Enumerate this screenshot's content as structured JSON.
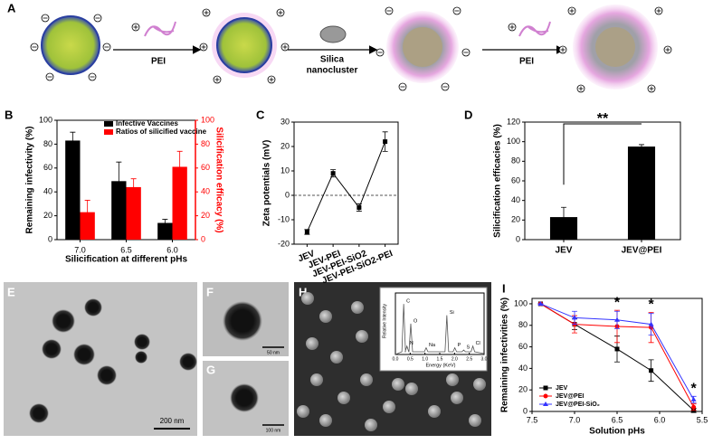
{
  "panels": {
    "scheme": {
      "label": "A",
      "step_1": "PEI",
      "step_2": [
        "Silica",
        "nanocluster"
      ],
      "step_3": "PEI"
    },
    "e": {
      "label": "E",
      "scale_bar": "200 nm"
    },
    "f": {
      "label": "F",
      "scale_bar": "50 nm"
    },
    "g": {
      "label": "G",
      "scale_bar": "100 nm"
    },
    "h": {
      "label": "H",
      "inset": {
        "y_label": "Relative Intensity",
        "x_label": "Energy (KeV)",
        "xticks": [
          {
            "value": 0,
            "label": "0.0"
          },
          {
            "value": 0.5,
            "label": "0.5"
          },
          {
            "value": 1,
            "label": "1.0"
          },
          {
            "value": 1.5,
            "label": "1.5"
          },
          {
            "value": 2,
            "label": "2.0"
          },
          {
            "value": 2.5,
            "label": "2.5"
          },
          {
            "value": 3,
            "label": "3.0"
          }
        ],
        "peaks": [
          "C",
          "N",
          "O",
          "Na",
          "Si",
          "P",
          "S",
          "Cl"
        ]
      }
    }
  },
  "chart_data": [
    {
      "type": "bar",
      "label": "B",
      "categories": [
        "7.0",
        "6.5",
        "6.0"
      ],
      "x_label": "Silicification at different pHs",
      "y_label": "Remaining infectivity (%)",
      "y2_label": "Silicification efficacy (%)",
      "ylim": [
        0,
        100
      ],
      "yticks": [
        0,
        20,
        40,
        60,
        80,
        100
      ],
      "y2lim": [
        0,
        100
      ],
      "y2ticks": [
        0,
        20,
        40,
        60,
        80,
        100
      ],
      "legend": "upper center",
      "series": [
        {
          "name": "Infective Vaccines",
          "color": "#000000",
          "values": [
            83,
            49,
            14
          ],
          "errors": [
            7,
            16,
            3
          ]
        },
        {
          "name": "Ratios of silicified vaccine",
          "color": "#ff0000",
          "axis": "y2",
          "values": [
            23,
            44,
            61
          ],
          "errors": [
            10,
            7,
            13
          ]
        }
      ]
    },
    {
      "type": "line",
      "label": "C",
      "categories": [
        "JEV",
        "JEV-PEI",
        "JEV-PEI-SiO2",
        "JEV-PEI-SiO2-PEI"
      ],
      "y_label": "Zeta potentials (mV)",
      "ylim": [
        -20,
        30
      ],
      "yticks": [
        -20,
        -10,
        0,
        10,
        20,
        30
      ],
      "reference_line": 0,
      "series": [
        {
          "color": "#000000",
          "marker": "square",
          "values": [
            -15,
            9,
            -5,
            22
          ],
          "errors": [
            1,
            1.5,
            1.5,
            4
          ]
        }
      ]
    },
    {
      "type": "bar",
      "label": "D",
      "categories": [
        "JEV",
        "JEV@PEI"
      ],
      "y_label": "Silicification efficacies (%)",
      "ylim": [
        0,
        120
      ],
      "yticks": [
        0,
        20,
        40,
        60,
        80,
        100,
        120
      ],
      "color": "#000000",
      "values": [
        23,
        95
      ],
      "errors": [
        10,
        2
      ],
      "annotation": "**"
    },
    {
      "type": "line",
      "label": "I",
      "x": [
        7.4,
        7.0,
        6.5,
        6.1,
        5.6
      ],
      "x_label": "Solution pHs",
      "y_label": "Remaining infectivities (%)",
      "xlim": [
        7.5,
        5.5
      ],
      "xticks": [
        {
          "value": 7.5,
          "label": "7.5"
        },
        {
          "value": 7,
          "label": "7.0"
        },
        {
          "value": 6.5,
          "label": "6.5"
        },
        {
          "value": 6,
          "label": "6.0"
        },
        {
          "value": 5.5,
          "label": "5.5"
        }
      ],
      "ylim": [
        0,
        105
      ],
      "yticks": [
        0,
        20,
        40,
        60,
        80,
        100
      ],
      "legend": "lower left",
      "annotations": [
        "*",
        "*",
        "*"
      ],
      "series": [
        {
          "name": "JEV",
          "color": "#000000",
          "marker": "square",
          "values": [
            100,
            81,
            58,
            38,
            1
          ],
          "errors": [
            0,
            5,
            12,
            10,
            2
          ]
        },
        {
          "name": "JEV@PEI",
          "color": "#ff0000",
          "marker": "circle",
          "values": [
            100,
            81,
            79,
            78,
            4
          ],
          "errors": [
            0,
            8,
            15,
            14,
            3
          ]
        },
        {
          "name": "JEV@PEI-SiO₂",
          "color": "#3333ff",
          "marker": "triangle",
          "values": [
            100,
            87,
            85,
            81,
            11
          ],
          "errors": [
            0,
            6,
            8,
            10,
            3
          ]
        }
      ]
    }
  ]
}
